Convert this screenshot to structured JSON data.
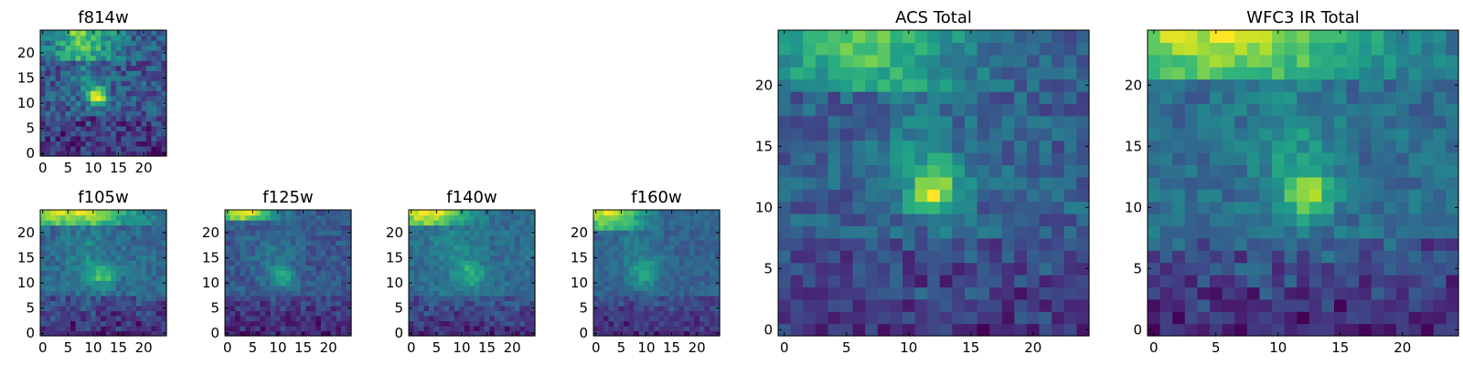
{
  "figure": {
    "colormap": "viridis",
    "grid_size": 25
  },
  "chart_data": [
    {
      "type": "heatmap",
      "title": "f814w",
      "x_ticks": [
        0,
        5,
        10,
        15,
        20
      ],
      "y_ticks": [
        0,
        5,
        10,
        15,
        20
      ],
      "xlim": [
        0,
        24
      ],
      "ylim": [
        0,
        24
      ],
      "features": {
        "background": 0.32,
        "noise": 0.16,
        "blobs": [
          {
            "x": 11,
            "y": 11.5,
            "sx": 1.4,
            "sy": 1.3,
            "amp": 0.6
          },
          {
            "x": 9,
            "y": 14.5,
            "sx": 2.5,
            "sy": 3.0,
            "amp": 0.18
          }
        ],
        "top_bands": [
          {
            "x": 8,
            "sx": 5,
            "y_start": 19,
            "amp": 0.5
          }
        ],
        "bottom_dim": 0.08
      }
    },
    {
      "type": "heatmap",
      "title": "f105w",
      "x_ticks": [
        0,
        5,
        10,
        15,
        20
      ],
      "y_ticks": [
        0,
        5,
        10,
        15,
        20
      ],
      "xlim": [
        0,
        24
      ],
      "ylim": [
        0,
        24
      ],
      "features": {
        "background": 0.3,
        "noise": 0.1,
        "blobs": [
          {
            "x": 12,
            "y": 11.5,
            "sx": 1.8,
            "sy": 1.6,
            "amp": 0.35
          },
          {
            "x": 9,
            "y": 16,
            "sx": 3.0,
            "sy": 4.0,
            "amp": 0.12
          }
        ],
        "top_bands": [
          {
            "x": 5,
            "sx": 9,
            "y_start": 22,
            "amp": 0.6
          }
        ],
        "bottom_dim": 0.15
      }
    },
    {
      "type": "heatmap",
      "title": "f125w",
      "x_ticks": [
        0,
        5,
        10,
        15,
        20
      ],
      "y_ticks": [
        0,
        5,
        10,
        15,
        20
      ],
      "xlim": [
        0,
        24
      ],
      "ylim": [
        0,
        24
      ],
      "features": {
        "background": 0.3,
        "noise": 0.1,
        "blobs": [
          {
            "x": 11,
            "y": 11,
            "sx": 1.8,
            "sy": 1.6,
            "amp": 0.32
          },
          {
            "x": 9,
            "y": 16,
            "sx": 3.0,
            "sy": 4.0,
            "amp": 0.12
          }
        ],
        "top_bands": [
          {
            "x": 3,
            "sx": 4,
            "y_start": 23,
            "amp": 0.8
          }
        ],
        "bottom_dim": 0.12
      }
    },
    {
      "type": "heatmap",
      "title": "f140w",
      "x_ticks": [
        0,
        5,
        10,
        15,
        20
      ],
      "y_ticks": [
        0,
        5,
        10,
        15,
        20
      ],
      "xlim": [
        0,
        24
      ],
      "ylim": [
        0,
        24
      ],
      "features": {
        "background": 0.3,
        "noise": 0.1,
        "blobs": [
          {
            "x": 12,
            "y": 11.5,
            "sx": 2.0,
            "sy": 1.8,
            "amp": 0.3
          },
          {
            "x": 9,
            "y": 16,
            "sx": 3.0,
            "sy": 4.0,
            "amp": 0.15
          }
        ],
        "top_bands": [
          {
            "x": 3,
            "sx": 5,
            "y_start": 22,
            "amp": 0.75
          }
        ],
        "bottom_dim": 0.18
      }
    },
    {
      "type": "heatmap",
      "title": "f160w",
      "x_ticks": [
        0,
        5,
        10,
        15,
        20
      ],
      "y_ticks": [
        0,
        5,
        10,
        15,
        20
      ],
      "xlim": [
        0,
        24
      ],
      "ylim": [
        0,
        24
      ],
      "features": {
        "background": 0.3,
        "noise": 0.1,
        "blobs": [
          {
            "x": 10,
            "y": 12,
            "sx": 2.0,
            "sy": 1.8,
            "amp": 0.32
          },
          {
            "x": 8,
            "y": 16,
            "sx": 3.0,
            "sy": 4.0,
            "amp": 0.15
          }
        ],
        "top_bands": [
          {
            "x": 2,
            "sx": 5,
            "y_start": 21,
            "amp": 0.85
          }
        ],
        "bottom_dim": 0.18
      }
    },
    {
      "type": "heatmap",
      "title": "ACS Total",
      "x_ticks": [
        0,
        5,
        10,
        15,
        20
      ],
      "y_ticks": [
        0,
        5,
        10,
        15,
        20
      ],
      "xlim": [
        0,
        24
      ],
      "ylim": [
        0,
        24
      ],
      "features": {
        "background": 0.36,
        "noise": 0.12,
        "blobs": [
          {
            "x": 12,
            "y": 11.5,
            "sx": 1.5,
            "sy": 1.5,
            "amp": 0.55
          },
          {
            "x": 11,
            "y": 15,
            "sx": 2.5,
            "sy": 3.0,
            "amp": 0.12
          }
        ],
        "top_bands": [
          {
            "x": 6,
            "sx": 6,
            "y_start": 20,
            "amp": 0.45
          }
        ],
        "bottom_dim": 0.1
      }
    },
    {
      "type": "heatmap",
      "title": "WFC3 IR Total",
      "x_ticks": [
        0,
        5,
        10,
        15,
        20
      ],
      "y_ticks": [
        0,
        5,
        10,
        15,
        20
      ],
      "xlim": [
        0,
        24
      ],
      "ylim": [
        0,
        24
      ],
      "features": {
        "background": 0.36,
        "noise": 0.1,
        "blobs": [
          {
            "x": 12.5,
            "y": 11,
            "sx": 1.3,
            "sy": 1.3,
            "amp": 0.45
          },
          {
            "x": 11,
            "y": 15,
            "sx": 2.5,
            "sy": 3.5,
            "amp": 0.15
          }
        ],
        "top_bands": [
          {
            "x": 5,
            "sx": 9,
            "y_start": 21,
            "amp": 0.55
          }
        ],
        "bottom_dim": 0.15
      }
    }
  ]
}
